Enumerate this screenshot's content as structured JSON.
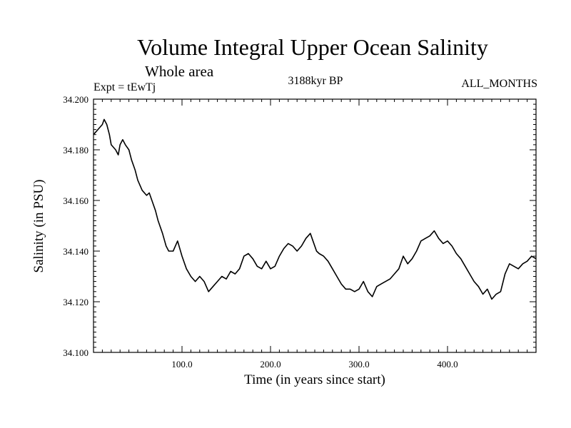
{
  "chart_data": {
    "type": "line",
    "title": "Volume Integral Upper Ocean Salinity",
    "subtitle": "Whole area",
    "experiment": "Expt = tEwTj",
    "period": "3188kyr BP",
    "months": "ALL_MONTHS",
    "xlabel": "Time (in years since start)",
    "ylabel": "Salinity (in PSU)",
    "xlim": [
      0,
      500
    ],
    "ylim": [
      34.1,
      34.2
    ],
    "x_ticks": [
      100,
      200,
      300,
      400
    ],
    "x_tick_labels": [
      "100.0",
      "200.0",
      "300.0",
      "400.0"
    ],
    "y_ticks": [
      34.1,
      34.12,
      34.14,
      34.16,
      34.18,
      34.2
    ],
    "y_tick_labels": [
      "34.100",
      "34.120",
      "34.140",
      "34.160",
      "34.180",
      "34.200"
    ],
    "grid": false,
    "series": [
      {
        "name": "Salinity",
        "x": [
          0,
          5,
          10,
          12,
          15,
          18,
          20,
          25,
          28,
          30,
          33,
          36,
          40,
          43,
          47,
          50,
          55,
          60,
          63,
          67,
          70,
          73,
          78,
          82,
          85,
          90,
          95,
          100,
          105,
          110,
          115,
          120,
          125,
          130,
          135,
          140,
          145,
          150,
          155,
          160,
          165,
          170,
          175,
          180,
          185,
          190,
          195,
          200,
          205,
          210,
          215,
          220,
          225,
          230,
          235,
          240,
          245,
          248,
          252,
          255,
          260,
          265,
          270,
          275,
          280,
          285,
          290,
          295,
          300,
          305,
          310,
          315,
          320,
          325,
          330,
          335,
          340,
          345,
          350,
          355,
          360,
          365,
          370,
          375,
          380,
          385,
          390,
          395,
          400,
          405,
          410,
          415,
          420,
          425,
          430,
          435,
          440,
          445,
          450,
          455,
          460,
          465,
          470,
          475,
          480,
          485,
          490,
          495,
          500
        ],
        "values": [
          34.186,
          34.188,
          34.19,
          34.192,
          34.19,
          34.186,
          34.182,
          34.18,
          34.178,
          34.182,
          34.184,
          34.182,
          34.18,
          34.176,
          34.172,
          34.168,
          34.164,
          34.162,
          34.163,
          34.159,
          34.156,
          34.152,
          34.147,
          34.142,
          34.14,
          34.14,
          34.144,
          34.138,
          34.133,
          34.13,
          34.128,
          34.13,
          34.128,
          34.124,
          34.126,
          34.128,
          34.13,
          34.129,
          34.132,
          34.131,
          34.133,
          34.138,
          34.139,
          34.137,
          34.134,
          34.133,
          34.136,
          34.133,
          34.134,
          34.138,
          34.141,
          34.143,
          34.142,
          34.14,
          34.142,
          34.145,
          34.147,
          34.144,
          34.14,
          34.139,
          34.138,
          34.136,
          34.133,
          34.13,
          34.127,
          34.125,
          34.125,
          34.124,
          34.125,
          34.128,
          34.124,
          34.122,
          34.126,
          34.127,
          34.128,
          34.129,
          34.131,
          34.133,
          34.138,
          34.135,
          34.137,
          34.14,
          34.144,
          34.145,
          34.146,
          34.148,
          34.145,
          34.143,
          34.144,
          34.142,
          34.139,
          34.137,
          34.134,
          34.131,
          34.128,
          34.126,
          34.123,
          34.125,
          34.121,
          34.123,
          34.124,
          34.131,
          34.135,
          34.134,
          34.133,
          34.135,
          34.136,
          34.138,
          34.137
        ]
      }
    ]
  }
}
